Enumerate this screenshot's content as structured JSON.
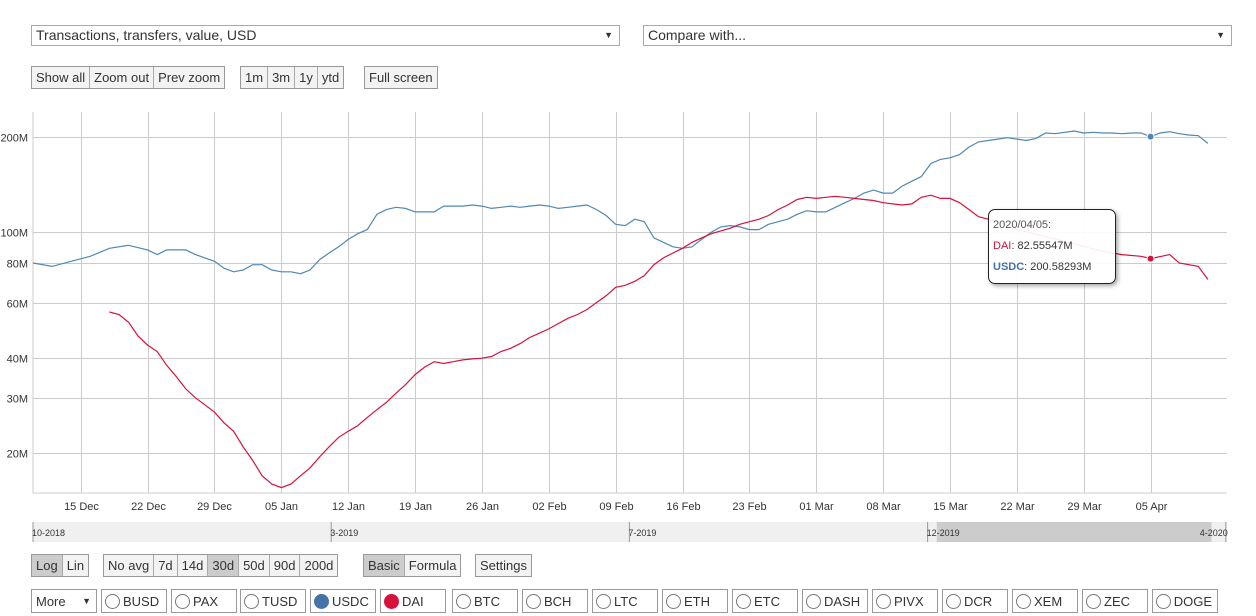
{
  "selectors": {
    "metric": "Transactions, transfers, value, USD",
    "compare": "Compare with..."
  },
  "zoom_buttons": {
    "group1": [
      "Show all",
      "Zoom out",
      "Prev zoom"
    ],
    "group2": [
      "1m",
      "3m",
      "1y",
      "ytd"
    ],
    "full_screen": "Full screen"
  },
  "scale_buttons": [
    "Log",
    "Lin"
  ],
  "scale_active": "Log",
  "avg_buttons": [
    "No avg",
    "7d",
    "14d",
    "30d",
    "50d",
    "90d",
    "200d"
  ],
  "avg_active": "30d",
  "mode_buttons": [
    "Basic",
    "Formula"
  ],
  "mode_active": "Basic",
  "settings_label": "Settings",
  "more_label": "More",
  "coins": [
    {
      "name": "BUSD",
      "checked": false
    },
    {
      "name": "PAX",
      "checked": false
    },
    {
      "name": "TUSD",
      "checked": false
    },
    {
      "name": "USDC",
      "checked": true,
      "color": "#4572a7"
    },
    {
      "name": "DAI",
      "checked": true,
      "color": "#d6123b"
    },
    {
      "name": "BTC",
      "checked": false
    },
    {
      "name": "BCH",
      "checked": false
    },
    {
      "name": "LTC",
      "checked": false
    },
    {
      "name": "ETH",
      "checked": false
    },
    {
      "name": "ETC",
      "checked": false
    },
    {
      "name": "DASH",
      "checked": false
    },
    {
      "name": "PIVX",
      "checked": false
    },
    {
      "name": "DCR",
      "checked": false
    },
    {
      "name": "XEM",
      "checked": false
    },
    {
      "name": "ZEC",
      "checked": false
    },
    {
      "name": "DOGE",
      "checked": false
    }
  ],
  "tooltip": {
    "date": "2020/04/05:",
    "dai_label": "DAI",
    "dai_value": "82.55547M",
    "usdc_label": "USDC",
    "usdc_value": "200.58293M"
  },
  "colors": {
    "usdc": "#4f88b5",
    "dai": "#d6123b",
    "grid": "#cccccc"
  },
  "chart_data": {
    "type": "line",
    "y_scale": "log",
    "ylim": [
      15,
      240
    ],
    "y_ticks": [
      {
        "v": 20,
        "label": "20M"
      },
      {
        "v": 30,
        "label": "30M"
      },
      {
        "v": 40,
        "label": "40M"
      },
      {
        "v": 60,
        "label": "60M"
      },
      {
        "v": 80,
        "label": "80M"
      },
      {
        "v": 100,
        "label": "100M"
      },
      {
        "v": 200,
        "label": "200M"
      }
    ],
    "x_start": "2019-12-10",
    "x_end": "2020-04-13",
    "x_ticks": [
      {
        "date": "2019-12-15",
        "label": "15 Dec"
      },
      {
        "date": "2019-12-22",
        "label": "22 Dec"
      },
      {
        "date": "2019-12-29",
        "label": "29 Dec"
      },
      {
        "date": "2020-01-05",
        "label": "05 Jan"
      },
      {
        "date": "2020-01-12",
        "label": "12 Jan"
      },
      {
        "date": "2020-01-19",
        "label": "19 Jan"
      },
      {
        "date": "2020-01-26",
        "label": "26 Jan"
      },
      {
        "date": "2020-02-02",
        "label": "02 Feb"
      },
      {
        "date": "2020-02-09",
        "label": "09 Feb"
      },
      {
        "date": "2020-02-16",
        "label": "16 Feb"
      },
      {
        "date": "2020-02-23",
        "label": "23 Feb"
      },
      {
        "date": "2020-03-01",
        "label": "01 Mar"
      },
      {
        "date": "2020-03-08",
        "label": "08 Mar"
      },
      {
        "date": "2020-03-15",
        "label": "15 Mar"
      },
      {
        "date": "2020-03-22",
        "label": "22 Mar"
      },
      {
        "date": "2020-03-29",
        "label": "29 Mar"
      },
      {
        "date": "2020-04-05",
        "label": "05 Apr"
      }
    ],
    "series": [
      {
        "name": "USDC",
        "color": "#4f88b5",
        "points": [
          [
            "2019-12-10",
            80
          ],
          [
            "2019-12-12",
            78
          ],
          [
            "2019-12-14",
            81
          ],
          [
            "2019-12-16",
            84
          ],
          [
            "2019-12-18",
            89
          ],
          [
            "2019-12-20",
            91
          ],
          [
            "2019-12-22",
            88
          ],
          [
            "2019-12-23",
            85
          ],
          [
            "2019-12-24",
            88
          ],
          [
            "2019-12-26",
            88
          ],
          [
            "2019-12-27",
            85
          ],
          [
            "2019-12-29",
            81
          ],
          [
            "2019-12-30",
            77
          ],
          [
            "2019-12-31",
            75
          ],
          [
            "2020-01-01",
            76
          ],
          [
            "2020-01-02",
            79
          ],
          [
            "2020-01-03",
            79
          ],
          [
            "2020-01-04",
            76
          ],
          [
            "2020-01-05",
            75
          ],
          [
            "2020-01-06",
            75
          ],
          [
            "2020-01-07",
            74
          ],
          [
            "2020-01-08",
            76
          ],
          [
            "2020-01-09",
            82
          ],
          [
            "2020-01-10",
            86
          ],
          [
            "2020-01-11",
            90
          ],
          [
            "2020-01-12",
            95
          ],
          [
            "2020-01-13",
            99
          ],
          [
            "2020-01-14",
            102
          ],
          [
            "2020-01-15",
            114
          ],
          [
            "2020-01-16",
            118
          ],
          [
            "2020-01-17",
            120
          ],
          [
            "2020-01-18",
            119
          ],
          [
            "2020-01-19",
            116
          ],
          [
            "2020-01-20",
            116
          ],
          [
            "2020-01-21",
            116
          ],
          [
            "2020-01-22",
            121
          ],
          [
            "2020-01-24",
            121
          ],
          [
            "2020-01-25",
            122
          ],
          [
            "2020-01-26",
            121
          ],
          [
            "2020-01-27",
            119
          ],
          [
            "2020-01-28",
            120
          ],
          [
            "2020-01-29",
            121
          ],
          [
            "2020-01-30",
            120
          ],
          [
            "2020-01-31",
            121
          ],
          [
            "2020-02-01",
            122
          ],
          [
            "2020-02-02",
            121
          ],
          [
            "2020-02-03",
            119
          ],
          [
            "2020-02-04",
            120
          ],
          [
            "2020-02-05",
            121
          ],
          [
            "2020-02-06",
            122
          ],
          [
            "2020-02-07",
            118
          ],
          [
            "2020-02-08",
            113
          ],
          [
            "2020-02-09",
            106
          ],
          [
            "2020-02-10",
            105
          ],
          [
            "2020-02-11",
            110
          ],
          [
            "2020-02-12",
            108
          ],
          [
            "2020-02-13",
            96
          ],
          [
            "2020-02-14",
            93
          ],
          [
            "2020-02-15",
            90
          ],
          [
            "2020-02-16",
            89
          ],
          [
            "2020-02-17",
            90
          ],
          [
            "2020-02-18",
            95
          ],
          [
            "2020-02-19",
            100
          ],
          [
            "2020-02-20",
            104
          ],
          [
            "2020-02-21",
            105
          ],
          [
            "2020-02-22",
            104
          ],
          [
            "2020-02-23",
            102
          ],
          [
            "2020-02-24",
            102
          ],
          [
            "2020-02-25",
            106
          ],
          [
            "2020-02-26",
            108
          ],
          [
            "2020-02-27",
            110
          ],
          [
            "2020-02-28",
            114
          ],
          [
            "2020-02-29",
            117
          ],
          [
            "2020-03-01",
            116
          ],
          [
            "2020-03-02",
            116
          ],
          [
            "2020-03-03",
            120
          ],
          [
            "2020-03-04",
            124
          ],
          [
            "2020-03-05",
            128
          ],
          [
            "2020-03-06",
            133
          ],
          [
            "2020-03-07",
            136
          ],
          [
            "2020-03-08",
            133
          ],
          [
            "2020-03-09",
            133
          ],
          [
            "2020-03-10",
            140
          ],
          [
            "2020-03-11",
            145
          ],
          [
            "2020-03-12",
            150
          ],
          [
            "2020-03-13",
            165
          ],
          [
            "2020-03-14",
            170
          ],
          [
            "2020-03-15",
            172
          ],
          [
            "2020-03-16",
            176
          ],
          [
            "2020-03-17",
            186
          ],
          [
            "2020-03-18",
            193
          ],
          [
            "2020-03-19",
            195
          ],
          [
            "2020-03-20",
            197
          ],
          [
            "2020-03-21",
            199
          ],
          [
            "2020-03-22",
            197
          ],
          [
            "2020-03-23",
            195
          ],
          [
            "2020-03-24",
            198
          ],
          [
            "2020-03-25",
            206
          ],
          [
            "2020-03-26",
            205
          ],
          [
            "2020-03-28",
            209
          ],
          [
            "2020-03-29",
            206
          ],
          [
            "2020-03-30",
            207
          ],
          [
            "2020-03-31",
            206
          ],
          [
            "2020-04-01",
            206
          ],
          [
            "2020-04-02",
            205
          ],
          [
            "2020-04-03",
            206
          ],
          [
            "2020-04-04",
            206
          ],
          [
            "2020-04-05",
            200.58
          ],
          [
            "2020-04-06",
            206
          ],
          [
            "2020-04-07",
            208
          ],
          [
            "2020-04-08",
            205
          ],
          [
            "2020-04-09",
            203
          ],
          [
            "2020-04-10",
            202
          ],
          [
            "2020-04-11",
            191
          ]
        ]
      },
      {
        "name": "DAI",
        "color": "#d6123b",
        "points": [
          [
            "2019-12-18",
            56
          ],
          [
            "2019-12-19",
            55
          ],
          [
            "2019-12-20",
            52
          ],
          [
            "2019-12-21",
            47
          ],
          [
            "2019-12-22",
            44
          ],
          [
            "2019-12-23",
            42
          ],
          [
            "2019-12-24",
            38
          ],
          [
            "2019-12-25",
            35
          ],
          [
            "2019-12-26",
            32
          ],
          [
            "2019-12-27",
            30
          ],
          [
            "2019-12-28",
            28.5
          ],
          [
            "2019-12-29",
            27
          ],
          [
            "2019-12-30",
            25
          ],
          [
            "2019-12-31",
            23.5
          ],
          [
            "2020-01-01",
            21
          ],
          [
            "2020-01-02",
            19
          ],
          [
            "2020-01-03",
            17
          ],
          [
            "2020-01-04",
            16
          ],
          [
            "2020-01-05",
            15.6
          ],
          [
            "2020-01-06",
            16
          ],
          [
            "2020-01-07",
            17
          ],
          [
            "2020-01-08",
            18
          ],
          [
            "2020-01-09",
            19.5
          ],
          [
            "2020-01-10",
            21
          ],
          [
            "2020-01-11",
            22.5
          ],
          [
            "2020-01-12",
            23.5
          ],
          [
            "2020-01-13",
            24.5
          ],
          [
            "2020-01-14",
            26
          ],
          [
            "2020-01-15",
            27.5
          ],
          [
            "2020-01-16",
            29
          ],
          [
            "2020-01-17",
            31
          ],
          [
            "2020-01-18",
            33
          ],
          [
            "2020-01-19",
            35.5
          ],
          [
            "2020-01-20",
            37.5
          ],
          [
            "2020-01-21",
            39
          ],
          [
            "2020-01-22",
            38.5
          ],
          [
            "2020-01-23",
            39
          ],
          [
            "2020-01-24",
            39.5
          ],
          [
            "2020-01-25",
            39.8
          ],
          [
            "2020-01-26",
            40
          ],
          [
            "2020-01-27",
            40.5
          ],
          [
            "2020-01-28",
            42
          ],
          [
            "2020-01-29",
            43
          ],
          [
            "2020-01-30",
            44.5
          ],
          [
            "2020-01-31",
            46.5
          ],
          [
            "2020-02-01",
            48
          ],
          [
            "2020-02-02",
            49.5
          ],
          [
            "2020-02-03",
            51.5
          ],
          [
            "2020-02-04",
            53.5
          ],
          [
            "2020-02-05",
            55
          ],
          [
            "2020-02-06",
            57
          ],
          [
            "2020-02-07",
            60
          ],
          [
            "2020-02-08",
            63
          ],
          [
            "2020-02-09",
            67
          ],
          [
            "2020-02-10",
            68
          ],
          [
            "2020-02-11",
            70
          ],
          [
            "2020-02-12",
            73
          ],
          [
            "2020-02-13",
            79
          ],
          [
            "2020-02-14",
            83
          ],
          [
            "2020-02-15",
            86
          ],
          [
            "2020-02-16",
            89
          ],
          [
            "2020-02-17",
            93
          ],
          [
            "2020-02-18",
            96
          ],
          [
            "2020-02-19",
            99
          ],
          [
            "2020-02-20",
            101
          ],
          [
            "2020-02-21",
            103
          ],
          [
            "2020-02-22",
            106
          ],
          [
            "2020-02-23",
            108
          ],
          [
            "2020-02-24",
            110
          ],
          [
            "2020-02-25",
            113
          ],
          [
            "2020-02-26",
            118
          ],
          [
            "2020-02-27",
            122
          ],
          [
            "2020-02-28",
            127
          ],
          [
            "2020-02-29",
            129
          ],
          [
            "2020-03-01",
            128
          ],
          [
            "2020-03-02",
            129
          ],
          [
            "2020-03-03",
            130
          ],
          [
            "2020-03-04",
            129
          ],
          [
            "2020-03-05",
            128
          ],
          [
            "2020-03-06",
            127
          ],
          [
            "2020-03-07",
            126
          ],
          [
            "2020-03-08",
            124
          ],
          [
            "2020-03-09",
            123
          ],
          [
            "2020-03-10",
            122
          ],
          [
            "2020-03-11",
            123
          ],
          [
            "2020-03-12",
            129
          ],
          [
            "2020-03-13",
            131
          ],
          [
            "2020-03-14",
            128
          ],
          [
            "2020-03-15",
            128
          ],
          [
            "2020-03-16",
            124
          ],
          [
            "2020-03-17",
            118
          ],
          [
            "2020-03-18",
            112
          ],
          [
            "2020-03-20",
            108
          ],
          [
            "2020-03-22",
            102
          ],
          [
            "2020-03-25",
            97
          ],
          [
            "2020-03-28",
            92
          ],
          [
            "2020-03-31",
            87
          ],
          [
            "2020-04-02",
            85
          ],
          [
            "2020-04-04",
            84
          ],
          [
            "2020-04-05",
            82.56
          ],
          [
            "2020-04-07",
            85
          ],
          [
            "2020-04-08",
            80
          ],
          [
            "2020-04-10",
            78
          ],
          [
            "2020-04-11",
            71
          ]
        ]
      }
    ],
    "navigator_labels": [
      "10-2018",
      "3-2019",
      "7-2019",
      "12-2019",
      "4-2020"
    ],
    "navigator_selection": {
      "from_fraction": 0.757,
      "to_fraction": 0.987
    }
  }
}
